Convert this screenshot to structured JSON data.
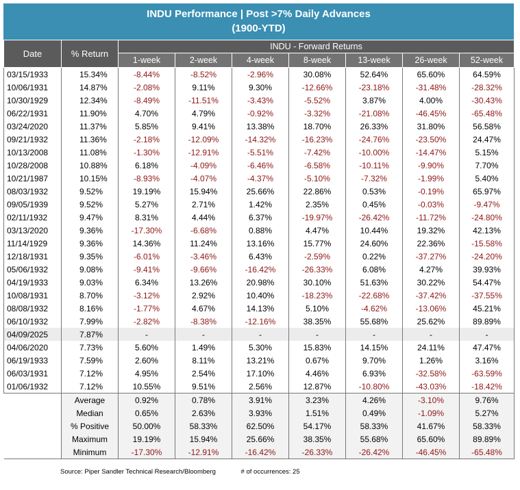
{
  "title": {
    "line1": "INDU Performance | Post >7% Daily Advances",
    "line2": "(1900-YTD)"
  },
  "headers": {
    "date": "Date",
    "return": "% Return",
    "group": "INDU - Forward Returns",
    "periods": [
      "1-week",
      "2-week",
      "4-week",
      "8-week",
      "13-week",
      "26-week",
      "52-week"
    ]
  },
  "colors": {
    "title_bg": "#3a8fb3",
    "header_bg": "#5b5b5b",
    "subheader_bg": "#737373",
    "negative": "#8f1616",
    "highlight_row": "#ececec"
  },
  "rows": [
    {
      "date": "03/15/1933",
      "ret": "15.34%",
      "vals": [
        "-8.44%",
        "-8.52%",
        "-2.96%",
        "30.08%",
        "52.64%",
        "65.60%",
        "64.59%"
      ]
    },
    {
      "date": "10/06/1931",
      "ret": "14.87%",
      "vals": [
        "-2.08%",
        "9.11%",
        "9.30%",
        "-12.66%",
        "-23.18%",
        "-31.48%",
        "-28.32%"
      ]
    },
    {
      "date": "10/30/1929",
      "ret": "12.34%",
      "vals": [
        "-8.49%",
        "-11.51%",
        "-3.43%",
        "-5.52%",
        "3.87%",
        "4.00%",
        "-30.43%"
      ]
    },
    {
      "date": "06/22/1931",
      "ret": "11.90%",
      "vals": [
        "4.70%",
        "4.79%",
        "-0.92%",
        "-3.32%",
        "-21.08%",
        "-46.45%",
        "-65.48%"
      ]
    },
    {
      "date": "03/24/2020",
      "ret": "11.37%",
      "vals": [
        "5.85%",
        "9.41%",
        "13.38%",
        "18.70%",
        "26.33%",
        "31.80%",
        "56.58%"
      ]
    },
    {
      "date": "09/21/1932",
      "ret": "11.36%",
      "vals": [
        "-2.18%",
        "-12.09%",
        "-14.32%",
        "-16.23%",
        "-24.76%",
        "-23.50%",
        "24.47%"
      ]
    },
    {
      "date": "10/13/2008",
      "ret": "11.08%",
      "vals": [
        "-1.30%",
        "-12.91%",
        "-5.51%",
        "-7.42%",
        "-10.00%",
        "-14.47%",
        "5.15%"
      ]
    },
    {
      "date": "10/28/2008",
      "ret": "10.88%",
      "vals": [
        "6.18%",
        "-4.09%",
        "-6.46%",
        "-6.58%",
        "-10.11%",
        "-9.90%",
        "7.70%"
      ]
    },
    {
      "date": "10/21/1987",
      "ret": "10.15%",
      "vals": [
        "-8.93%",
        "-4.07%",
        "-4.37%",
        "-5.10%",
        "-7.32%",
        "-1.99%",
        "5.40%"
      ]
    },
    {
      "date": "08/03/1932",
      "ret": "9.52%",
      "vals": [
        "19.19%",
        "15.94%",
        "25.66%",
        "22.86%",
        "0.53%",
        "-0.19%",
        "65.97%"
      ]
    },
    {
      "date": "09/05/1939",
      "ret": "9.52%",
      "vals": [
        "5.27%",
        "2.71%",
        "1.42%",
        "2.35%",
        "0.45%",
        "-0.03%",
        "-9.47%"
      ]
    },
    {
      "date": "02/11/1932",
      "ret": "9.47%",
      "vals": [
        "8.31%",
        "4.44%",
        "6.37%",
        "-19.97%",
        "-26.42%",
        "-11.72%",
        "-24.80%"
      ]
    },
    {
      "date": "03/13/2020",
      "ret": "9.36%",
      "vals": [
        "-17.30%",
        "-6.68%",
        "0.88%",
        "4.47%",
        "10.44%",
        "19.32%",
        "42.13%"
      ]
    },
    {
      "date": "11/14/1929",
      "ret": "9.36%",
      "vals": [
        "14.36%",
        "11.24%",
        "13.16%",
        "15.77%",
        "24.60%",
        "22.36%",
        "-15.58%"
      ]
    },
    {
      "date": "12/18/1931",
      "ret": "9.35%",
      "vals": [
        "-6.01%",
        "-3.46%",
        "6.43%",
        "-2.59%",
        "0.22%",
        "-37.27%",
        "-24.20%"
      ]
    },
    {
      "date": "05/06/1932",
      "ret": "9.08%",
      "vals": [
        "-9.41%",
        "-9.66%",
        "-16.42%",
        "-26.33%",
        "6.08%",
        "4.27%",
        "39.93%"
      ]
    },
    {
      "date": "04/19/1933",
      "ret": "9.03%",
      "vals": [
        "6.34%",
        "13.26%",
        "20.98%",
        "30.10%",
        "51.63%",
        "30.22%",
        "54.47%"
      ]
    },
    {
      "date": "10/08/1931",
      "ret": "8.70%",
      "vals": [
        "-3.12%",
        "2.92%",
        "10.40%",
        "-18.23%",
        "-22.68%",
        "-37.42%",
        "-37.55%"
      ]
    },
    {
      "date": "08/08/1932",
      "ret": "8.16%",
      "vals": [
        "-1.77%",
        "4.67%",
        "14.13%",
        "5.10%",
        "-4.62%",
        "-13.06%",
        "45.21%"
      ]
    },
    {
      "date": "06/10/1932",
      "ret": "7.99%",
      "vals": [
        "-2.82%",
        "-8.38%",
        "-12.16%",
        "38.35%",
        "55.68%",
        "25.62%",
        "89.89%"
      ]
    },
    {
      "date": "04/09/2025",
      "ret": "7.87%",
      "vals": [
        "-",
        "-",
        "-",
        "-",
        "-",
        "-",
        "-"
      ],
      "highlight": true
    },
    {
      "date": "04/06/2020",
      "ret": "7.73%",
      "vals": [
        "5.60%",
        "1.49%",
        "5.30%",
        "15.83%",
        "14.15%",
        "24.11%",
        "47.47%"
      ]
    },
    {
      "date": "06/19/1933",
      "ret": "7.59%",
      "vals": [
        "2.60%",
        "8.11%",
        "13.21%",
        "0.67%",
        "9.70%",
        "1.26%",
        "3.16%"
      ]
    },
    {
      "date": "06/03/1931",
      "ret": "7.12%",
      "vals": [
        "4.95%",
        "2.54%",
        "17.10%",
        "4.46%",
        "6.93%",
        "-32.58%",
        "-63.59%"
      ]
    },
    {
      "date": "01/06/1932",
      "ret": "7.12%",
      "vals": [
        "10.55%",
        "9.51%",
        "2.56%",
        "12.87%",
        "-10.80%",
        "-43.03%",
        "-18.42%"
      ]
    }
  ],
  "stats": [
    {
      "label": "Average",
      "ret": "0.92%",
      "vals": [
        "0.78%",
        "3.91%",
        "3.23%",
        "4.26%",
        "-3.10%",
        "9.76%"
      ]
    },
    {
      "label": "Median",
      "ret": "0.65%",
      "vals": [
        "2.63%",
        "3.93%",
        "1.51%",
        "0.49%",
        "-1.09%",
        "5.27%"
      ]
    },
    {
      "label": "% Positive",
      "ret": "50.00%",
      "vals": [
        "58.33%",
        "62.50%",
        "54.17%",
        "58.33%",
        "41.67%",
        "58.33%"
      ]
    },
    {
      "label": "Maximum",
      "ret": "19.19%",
      "vals": [
        "15.94%",
        "25.66%",
        "38.35%",
        "55.68%",
        "65.60%",
        "89.89%"
      ]
    },
    {
      "label": "Minimum",
      "ret": "-17.30%",
      "vals": [
        "-12.91%",
        "-16.42%",
        "-26.33%",
        "-26.42%",
        "-46.45%",
        "-65.48%"
      ]
    }
  ],
  "footer": {
    "source": "Source: Piper Sandler Technical Research/Bloomberg",
    "occurrences": "# of occurrences: 25"
  }
}
